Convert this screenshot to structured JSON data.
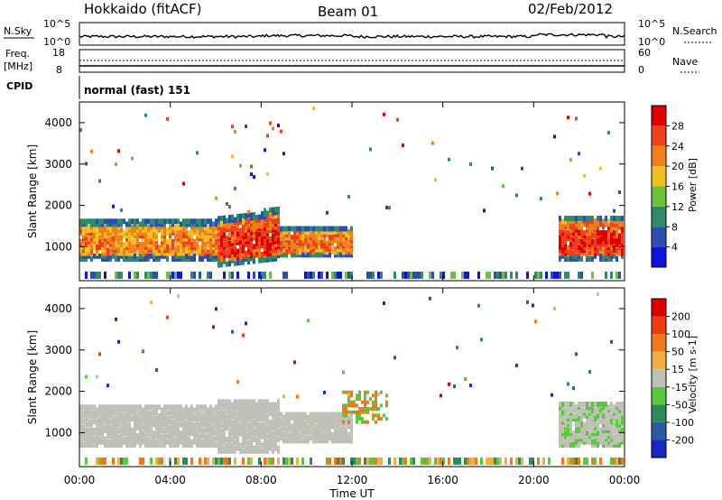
{
  "header": {
    "station": "Hokkaido (fitACF)",
    "beam": "Beam 01",
    "date": "02/Feb/2012"
  },
  "strips": {
    "nsky_label": "N.Sky",
    "nsky_top": "10^5",
    "nsky_bottom": "10^0",
    "nsearch_label": "N.Search",
    "nsearch_top": "10^5",
    "nsearch_bottom": "10^0",
    "freq_label": "Freq.",
    "freq_unit": "[MHz]",
    "freq_top": "18",
    "freq_bottom": "8",
    "nave_label": "Nave",
    "nave_top": "60",
    "nave_bottom": "0",
    "cpid_label": "CPID",
    "cpid_value": "normal (fast) 151"
  },
  "axes": {
    "xlabel": "Time UT",
    "ylabel": "Slant Range [km]",
    "x_ticks": [
      "00:00",
      "04:00",
      "08:00",
      "12:00",
      "16:00",
      "20:00",
      "00:00"
    ],
    "y_ticks": [
      "1000",
      "2000",
      "3000",
      "4000"
    ]
  },
  "colorbars": {
    "power": {
      "title": "Power [dB]",
      "labels": [
        "4",
        "8",
        "12",
        "16",
        "20",
        "24",
        "28"
      ],
      "colors": [
        "#1010e0",
        "#2a4fb0",
        "#2e8a6a",
        "#6cc03a",
        "#f0c020",
        "#f08018",
        "#f04018",
        "#e00000"
      ]
    },
    "velocity": {
      "title": "Velocity [m s-1]",
      "labels": [
        "200",
        "100",
        "50",
        "15",
        "-15",
        "-50",
        "-100",
        "-200"
      ],
      "colors": [
        "#1428c8",
        "#2a5aa0",
        "#2e8a5a",
        "#5ac83c",
        "#c0c0b8",
        "#f0b040",
        "#f07818",
        "#f03c10",
        "#e00000"
      ]
    }
  },
  "chart_data": [
    {
      "type": "heatmap",
      "panel": "power",
      "x_range_hours": [
        0,
        24
      ],
      "y_range_km": [
        180,
        4500
      ],
      "colorbar": "Power [dB]",
      "bands": [
        {
          "t0": 0.0,
          "t1": 6.0,
          "r0": 700,
          "r1": 1650,
          "level": "mid-high"
        },
        {
          "t0": 6.0,
          "t1": 8.8,
          "r0": 600,
          "r1": 1700,
          "level": "high"
        },
        {
          "t0": 8.8,
          "t1": 12.0,
          "r0": 800,
          "r1": 1500,
          "level": "mid"
        },
        {
          "t0": 21.0,
          "t1": 24.0,
          "r0": 700,
          "r1": 1700,
          "level": "high"
        }
      ],
      "time_axis": "Time UT"
    },
    {
      "type": "heatmap",
      "panel": "velocity",
      "x_range_hours": [
        0,
        24
      ],
      "y_range_km": [
        180,
        4500
      ],
      "colorbar": "Velocity [m s-1]",
      "dominant_value_range": [
        -15,
        15
      ],
      "time_axis": "Time UT"
    }
  ]
}
